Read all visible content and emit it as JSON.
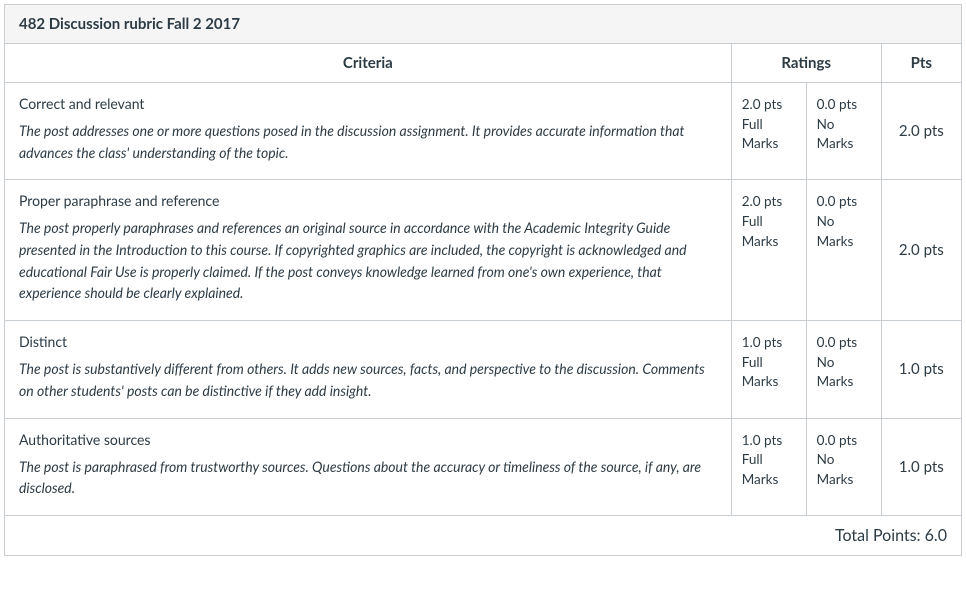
{
  "title": "482 Discussion rubric Fall 2 2017",
  "headers": {
    "criteria": "Criteria",
    "ratings": "Ratings",
    "pts": "Pts"
  },
  "rows": [
    {
      "name": "Correct and relevant",
      "desc": "The post addresses one or more questions posed in the discussion assignment. It provides accurate information that advances the class' understanding of the topic.",
      "ratings": [
        {
          "pts": "2.0 pts",
          "label": "Full Marks"
        },
        {
          "pts": "0.0 pts",
          "label": "No Marks"
        }
      ],
      "points": "2.0 pts"
    },
    {
      "name": "Proper paraphrase and reference",
      "desc": "The post properly paraphrases and references an original source in accordance with the Academic Integrity Guide presented in the Introduction to this course. If copyrighted graphics are included, the copyright is acknowledged and educational Fair Use is properly claimed. If the post conveys knowledge learned from one's own experience, that experience should be clearly explained.",
      "ratings": [
        {
          "pts": "2.0 pts",
          "label": "Full Marks"
        },
        {
          "pts": "0.0 pts",
          "label": "No Marks"
        }
      ],
      "points": "2.0 pts"
    },
    {
      "name": "Distinct",
      "desc": "The post is substantively different from others. It adds new sources, facts, and perspective to the discussion. Comments on other students' posts can be distinctive if they add insight.",
      "ratings": [
        {
          "pts": "1.0 pts",
          "label": "Full Marks"
        },
        {
          "pts": "0.0 pts",
          "label": "No Marks"
        }
      ],
      "points": "1.0 pts"
    },
    {
      "name": "Authoritative sources",
      "desc": "The post is paraphrased from trustworthy sources. Questions about the accuracy or timeliness of the source, if any, are disclosed.",
      "ratings": [
        {
          "pts": "1.0 pts",
          "label": "Full Marks"
        },
        {
          "pts": "0.0 pts",
          "label": "No Marks"
        }
      ],
      "points": "1.0 pts"
    }
  ],
  "total_label": "Total Points: 6.0",
  "colors": {
    "border": "#c7cdd1",
    "header_bg": "#f5f5f5",
    "text": "#2d3b45"
  }
}
